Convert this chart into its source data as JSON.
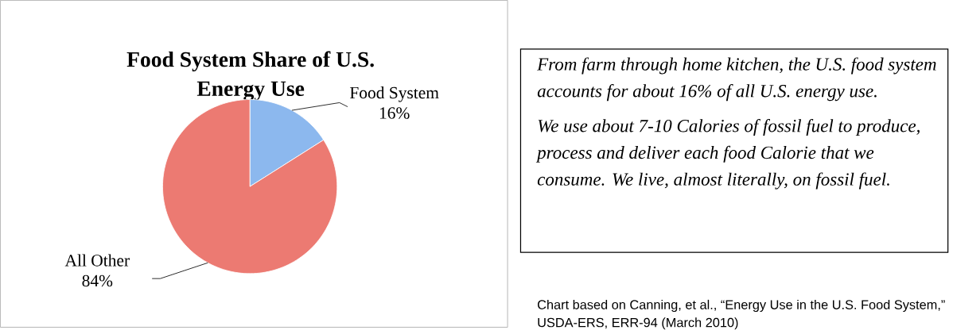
{
  "chart_data": {
    "type": "pie",
    "title": "Food System Share of U.S. Energy Use",
    "categories": [
      "Food System",
      "All Other"
    ],
    "values": [
      16,
      84
    ],
    "colors": [
      "#8cb8ee",
      "#ec7a72"
    ],
    "value_labels": [
      "16%",
      "84%"
    ],
    "annotations": [
      "From farm through home kitchen, the U.S. food system accounts for about 16% of all U.S. energy use.",
      "We use about 7-10 Calories of fossil fuel to produce, process and deliver each food Calorie that we consume. We live, almost literally, on fossil fuel.",
      "Chart based on Canning, et al., “Energy Use in the U.S. Food System,” USDA-ERS, ERR-94 (March 2010)"
    ]
  }
}
